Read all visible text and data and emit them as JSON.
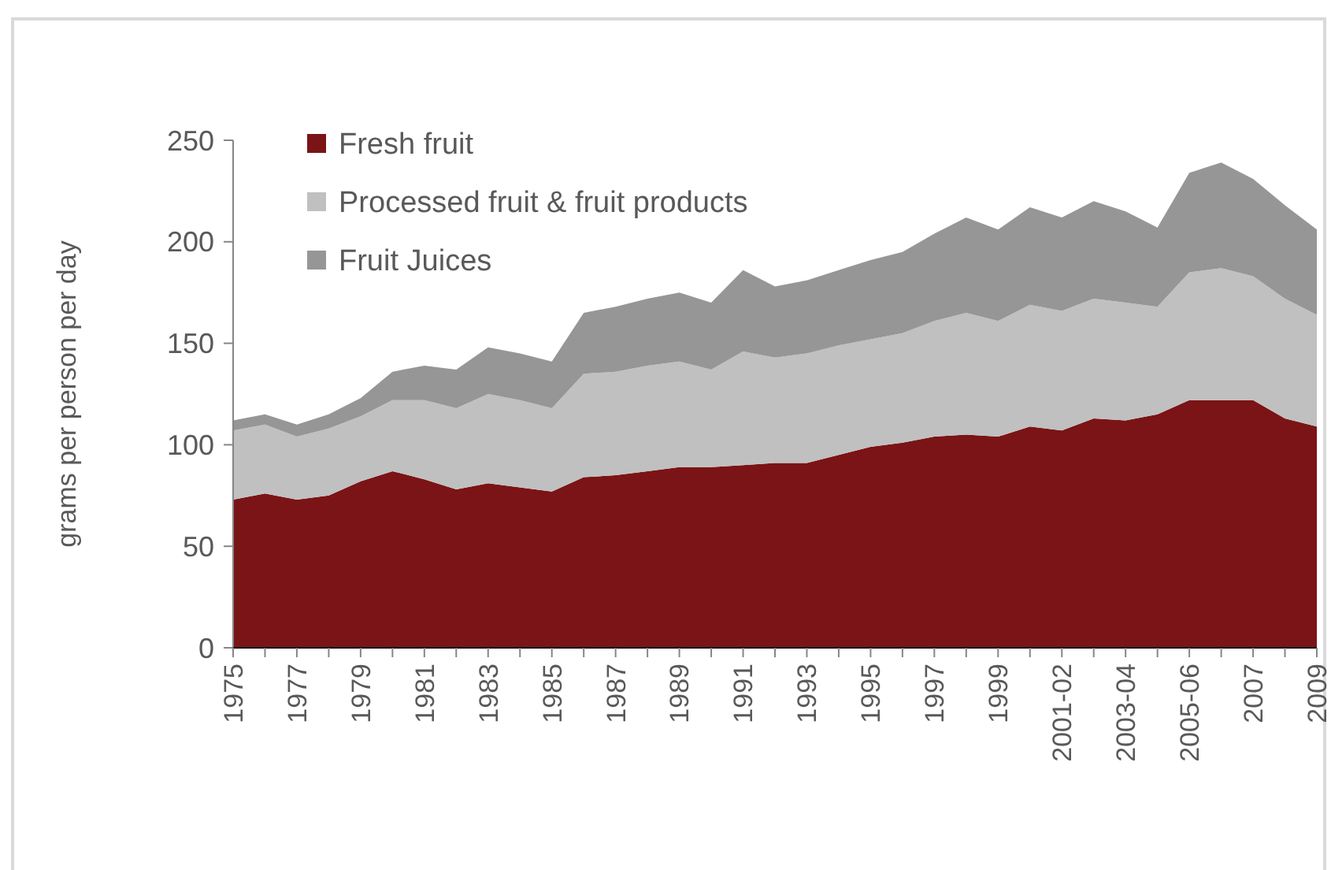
{
  "chart_data": {
    "type": "area",
    "stacked": true,
    "ylabel": "grams per person per day",
    "categories": [
      "1975",
      null,
      "1977",
      null,
      "1979",
      null,
      "1981",
      null,
      "1983",
      null,
      "1985",
      null,
      "1987",
      null,
      "1989",
      null,
      "1991",
      null,
      "1993",
      null,
      "1995",
      null,
      "1997",
      null,
      "1999",
      null,
      "2001-02",
      null,
      "2003-04",
      null,
      "2005-06",
      null,
      "2007",
      null,
      "2009"
    ],
    "series": [
      {
        "name": "Fresh fruit",
        "color": "#7b1416",
        "values": [
          73,
          76,
          73,
          75,
          82,
          87,
          83,
          78,
          81,
          79,
          77,
          84,
          85,
          87,
          89,
          89,
          90,
          91,
          91,
          95,
          99,
          101,
          104,
          105,
          104,
          109,
          107,
          113,
          112,
          115,
          122,
          122,
          122,
          113,
          109
        ]
      },
      {
        "name": "Processed fruit & fruit products",
        "color": "#c0c0c0",
        "values": [
          34,
          34,
          31,
          33,
          32,
          35,
          39,
          40,
          44,
          43,
          41,
          51,
          51,
          52,
          52,
          48,
          56,
          52,
          54,
          54,
          53,
          54,
          57,
          60,
          57,
          60,
          59,
          59,
          58,
          53,
          63,
          65,
          61,
          59,
          55
        ]
      },
      {
        "name": "Fruit Juices",
        "color": "#969696",
        "values": [
          5,
          5,
          6,
          7,
          9,
          14,
          17,
          19,
          23,
          23,
          23,
          30,
          32,
          33,
          34,
          33,
          40,
          35,
          36,
          37,
          39,
          40,
          43,
          47,
          45,
          48,
          46,
          48,
          45,
          39,
          49,
          52,
          48,
          46,
          42
        ]
      }
    ],
    "ylim": [
      0,
      250
    ],
    "yticks": [
      0,
      50,
      100,
      150,
      200,
      250
    ],
    "grid": false,
    "legend": "top left"
  }
}
